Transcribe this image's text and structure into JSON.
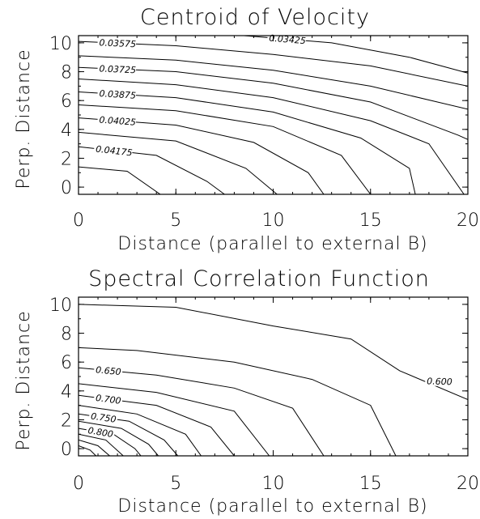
{
  "chart_data": [
    {
      "type": "contour",
      "title": "Centroid of Velocity",
      "xlabel": "Distance (parallel to external B)",
      "ylabel": "Perp. Distance",
      "xlim": [
        0,
        20
      ],
      "ylim": [
        -0.5,
        10.5
      ],
      "xticks": [
        "0",
        "5",
        "10",
        "15",
        "20"
      ],
      "yticks": [
        "0",
        "2",
        "4",
        "6",
        "8",
        "10"
      ],
      "contours": [
        {
          "label": "0.03575",
          "points": [
            [
              0,
              10.1
            ],
            [
              5,
              9.8
            ],
            [
              10,
              9.2
            ],
            [
              15,
              8.4
            ],
            [
              20,
              7.0
            ]
          ]
        },
        {
          "label": "0.03425",
          "points": [
            [
              8.5,
              10.5
            ],
            [
              13,
              10.0
            ],
            [
              17,
              9.0
            ],
            [
              20,
              7.9
            ]
          ]
        },
        {
          "label": "",
          "points": [
            [
              0,
              9.1
            ],
            [
              5,
              8.8
            ],
            [
              10,
              8.1
            ],
            [
              15,
              7.0
            ],
            [
              20,
              5.4
            ]
          ]
        },
        {
          "label": "0.03725",
          "points": [
            [
              0,
              8.3
            ],
            [
              5,
              8.0
            ],
            [
              10,
              7.2
            ],
            [
              15,
              5.9
            ],
            [
              19.5,
              3.6
            ],
            [
              20,
              3.3
            ]
          ]
        },
        {
          "label": "",
          "points": [
            [
              0,
              7.5
            ],
            [
              5,
              7.1
            ],
            [
              10,
              6.2
            ],
            [
              15,
              4.6
            ],
            [
              18,
              3.0
            ],
            [
              19.8,
              -0.5
            ]
          ]
        },
        {
          "label": "0.03875",
          "points": [
            [
              0,
              6.6
            ],
            [
              5,
              6.2
            ],
            [
              10,
              5.2
            ],
            [
              14.5,
              3.4
            ],
            [
              17,
              1.3
            ],
            [
              17.3,
              -0.5
            ]
          ]
        },
        {
          "label": "",
          "points": [
            [
              0,
              5.7
            ],
            [
              5,
              5.3
            ],
            [
              10,
              4.2
            ],
            [
              13.5,
              2.2
            ],
            [
              15,
              -0.5
            ]
          ]
        },
        {
          "label": "0.04025",
          "points": [
            [
              0,
              4.8
            ],
            [
              5,
              4.3
            ],
            [
              9,
              3.1
            ],
            [
              11.8,
              1.0
            ],
            [
              12.6,
              -0.5
            ]
          ]
        },
        {
          "label": "",
          "points": [
            [
              0,
              3.8
            ],
            [
              5,
              3.2
            ],
            [
              8.6,
              1.3
            ],
            [
              10.2,
              -0.5
            ]
          ]
        },
        {
          "label": "0.04175",
          "points": [
            [
              0,
              2.8
            ],
            [
              4,
              2.2
            ],
            [
              6.6,
              0.4
            ],
            [
              7.5,
              -0.5
            ]
          ]
        },
        {
          "label": "",
          "points": [
            [
              0,
              1.4
            ],
            [
              2.5,
              1.1
            ],
            [
              4.2,
              -0.5
            ]
          ]
        }
      ]
    },
    {
      "type": "contour",
      "title": "Spectral Correlation Function",
      "xlabel": "Distance (parallel to external B)",
      "ylabel": "Perp. Distance",
      "xlim": [
        0,
        20
      ],
      "ylim": [
        -0.5,
        10.5
      ],
      "xticks": [
        "0",
        "5",
        "10",
        "15",
        "20"
      ],
      "yticks": [
        "0",
        "2",
        "4",
        "6",
        "8",
        "10"
      ],
      "contours": [
        {
          "label": "0.600",
          "points": [
            [
              0,
              10.0
            ],
            [
              5,
              9.8
            ],
            [
              10,
              8.5
            ],
            [
              14,
              7.6
            ],
            [
              16.5,
              5.4
            ],
            [
              20,
              3.4
            ]
          ]
        },
        {
          "label": "",
          "points": [
            [
              0,
              7.0
            ],
            [
              3,
              6.8
            ],
            [
              8,
              6.0
            ],
            [
              12,
              4.8
            ],
            [
              15,
              3.0
            ],
            [
              16.3,
              -0.5
            ]
          ]
        },
        {
          "label": "0.650",
          "points": [
            [
              0,
              5.6
            ],
            [
              4,
              5.1
            ],
            [
              8,
              4.2
            ],
            [
              11,
              2.8
            ],
            [
              12.6,
              -0.5
            ]
          ]
        },
        {
          "label": "",
          "points": [
            [
              0,
              4.5
            ],
            [
              4,
              3.9
            ],
            [
              8,
              2.6
            ],
            [
              9.8,
              -0.5
            ]
          ]
        },
        {
          "label": "0.700",
          "points": [
            [
              0,
              3.7
            ],
            [
              4,
              3.0
            ],
            [
              6.8,
              1.5
            ],
            [
              8.0,
              -0.5
            ]
          ]
        },
        {
          "label": "",
          "points": [
            [
              0,
              3.0
            ],
            [
              3,
              2.4
            ],
            [
              5.5,
              1.0
            ],
            [
              6.3,
              -0.5
            ]
          ]
        },
        {
          "label": "0.750",
          "points": [
            [
              0,
              2.4
            ],
            [
              2.6,
              1.9
            ],
            [
              4.4,
              0.6
            ],
            [
              5.1,
              -0.5
            ]
          ]
        },
        {
          "label": "",
          "points": [
            [
              0,
              1.9
            ],
            [
              2.2,
              1.4
            ],
            [
              3.6,
              0.3
            ],
            [
              4.1,
              -0.5
            ]
          ]
        },
        {
          "label": "0.800",
          "points": [
            [
              0,
              1.4
            ],
            [
              1.8,
              1.0
            ],
            [
              2.9,
              0.0
            ],
            [
              3.2,
              -0.5
            ]
          ]
        },
        {
          "label": "",
          "points": [
            [
              0,
              1.0
            ],
            [
              1.4,
              0.6
            ],
            [
              2.3,
              -0.5
            ]
          ]
        },
        {
          "label": "",
          "points": [
            [
              0,
              0.6
            ],
            [
              1.0,
              0.2
            ],
            [
              1.6,
              -0.5
            ]
          ]
        },
        {
          "label": "",
          "points": [
            [
              0,
              0.2
            ],
            [
              0.6,
              -0.1
            ],
            [
              0.9,
              -0.5
            ]
          ]
        }
      ]
    }
  ]
}
